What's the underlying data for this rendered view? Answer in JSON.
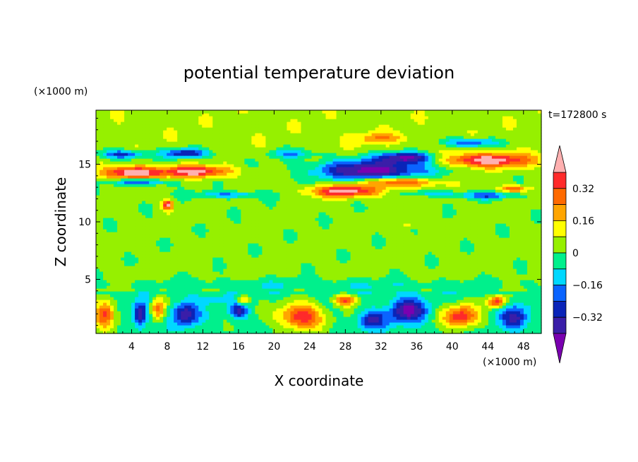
{
  "chart_data": {
    "type": "heatmap",
    "title": "potential temperature deviation",
    "xlabel": "X coordinate",
    "ylabel": "Z coordinate",
    "x_unit": "(×1000 m)",
    "y_unit": "(×1000 m)",
    "time_label": "t=172800 s",
    "xlim": [
      0,
      50
    ],
    "ylim": [
      0.3,
      19.7
    ],
    "x_ticks": [
      4,
      8,
      12,
      16,
      20,
      24,
      28,
      32,
      36,
      40,
      44,
      48
    ],
    "y_ticks": [
      5,
      10,
      15
    ],
    "colorbar": {
      "ticks": [
        "0.32",
        "0.16",
        "0",
        "-0.16",
        "-0.32"
      ],
      "tick_values": [
        0.32,
        0.16,
        0,
        -0.16,
        -0.32
      ],
      "levels": [
        -0.4,
        -0.32,
        -0.24,
        -0.16,
        -0.08,
        0,
        0.08,
        0.16,
        0.24,
        0.32,
        0.4
      ],
      "colors": [
        "#7a00b0",
        "#3a1ea8",
        "#0a24b8",
        "#0a64ff",
        "#00d8ff",
        "#00f08c",
        "#96f000",
        "#ffff00",
        "#ffa500",
        "#ff6a00",
        "#ff2a2a",
        "#ffb0b0"
      ]
    },
    "features": [
      {
        "x": 4,
        "z": 14.3,
        "sx": 3.0,
        "sz": 0.55,
        "a": 0.45
      },
      {
        "x": 11,
        "z": 14.4,
        "sx": 4.0,
        "sz": 0.5,
        "a": 0.42
      },
      {
        "x": 44,
        "z": 15.4,
        "sx": 5.0,
        "sz": 0.6,
        "a": 0.45
      },
      {
        "x": 28,
        "z": 12.7,
        "sx": 4.0,
        "sz": 0.5,
        "a": 0.42
      },
      {
        "x": 34,
        "z": 13.5,
        "sx": 4.0,
        "sz": 0.45,
        "a": 0.38
      },
      {
        "x": 31,
        "z": 14.5,
        "sx": 6.0,
        "sz": 0.9,
        "a": -0.48
      },
      {
        "x": 35,
        "z": 15.6,
        "sx": 3.0,
        "sz": 0.5,
        "a": -0.42
      },
      {
        "x": 3,
        "z": 15.9,
        "sx": 2.5,
        "sz": 0.4,
        "a": -0.3
      },
      {
        "x": 10,
        "z": 16.0,
        "sx": 2.5,
        "sz": 0.4,
        "a": -0.35
      },
      {
        "x": 5,
        "z": 13.5,
        "sx": 3.0,
        "sz": 0.3,
        "a": -0.3
      },
      {
        "x": 15,
        "z": 12.4,
        "sx": 4.0,
        "sz": 0.3,
        "a": -0.2
      },
      {
        "x": 22,
        "z": 16.0,
        "sx": 2.5,
        "sz": 0.4,
        "a": -0.18
      },
      {
        "x": 42,
        "z": 16.9,
        "sx": 3.0,
        "sz": 0.4,
        "a": -0.28
      },
      {
        "x": 44,
        "z": 12.3,
        "sx": 3.0,
        "sz": 0.3,
        "a": -0.25
      },
      {
        "x": 38,
        "z": 12.5,
        "sx": 3.0,
        "sz": 0.3,
        "a": -0.16
      },
      {
        "x": 32,
        "z": 17.3,
        "sx": 3.0,
        "sz": 0.5,
        "a": 0.18
      },
      {
        "x": 8,
        "z": 11.5,
        "sx": 0.6,
        "sz": 0.45,
        "a": 0.4
      },
      {
        "x": 47,
        "z": 12.9,
        "sx": 1.5,
        "sz": 0.3,
        "a": 0.3
      },
      {
        "x": 35,
        "z": 9.8,
        "sx": 1.0,
        "sz": 0.3,
        "a": 0.1
      },
      {
        "x": 1,
        "z": 2.0,
        "sx": 1.2,
        "sz": 1.2,
        "a": 0.38
      },
      {
        "x": 5,
        "z": 2.0,
        "sx": 0.8,
        "sz": 1.0,
        "a": -0.4
      },
      {
        "x": 7,
        "z": 2.5,
        "sx": 0.8,
        "sz": 1.0,
        "a": 0.3
      },
      {
        "x": 10,
        "z": 2.0,
        "sx": 1.5,
        "sz": 1.0,
        "a": -0.36
      },
      {
        "x": 16,
        "z": 2.3,
        "sx": 1.0,
        "sz": 0.7,
        "a": -0.3
      },
      {
        "x": 16.5,
        "z": 3.2,
        "sx": 0.7,
        "sz": 0.4,
        "a": 0.3
      },
      {
        "x": 23,
        "z": 1.8,
        "sx": 2.5,
        "sz": 1.1,
        "a": 0.42
      },
      {
        "x": 28,
        "z": 3.2,
        "sx": 1.2,
        "sz": 0.5,
        "a": 0.38
      },
      {
        "x": 31,
        "z": 1.5,
        "sx": 1.5,
        "sz": 0.8,
        "a": -0.3
      },
      {
        "x": 35,
        "z": 2.3,
        "sx": 2.0,
        "sz": 1.1,
        "a": -0.4
      },
      {
        "x": 41,
        "z": 1.8,
        "sx": 2.0,
        "sz": 1.0,
        "a": 0.4
      },
      {
        "x": 45,
        "z": 3.1,
        "sx": 1.0,
        "sz": 0.5,
        "a": 0.4
      },
      {
        "x": 47,
        "z": 1.7,
        "sx": 1.5,
        "sz": 1.0,
        "a": -0.32
      },
      {
        "x": 13,
        "z": 3.3,
        "sx": 2.0,
        "sz": 0.4,
        "a": -0.12
      },
      {
        "x": 25,
        "z": 4.5,
        "sx": 25.0,
        "sz": 0.6,
        "a": -0.1
      }
    ]
  }
}
